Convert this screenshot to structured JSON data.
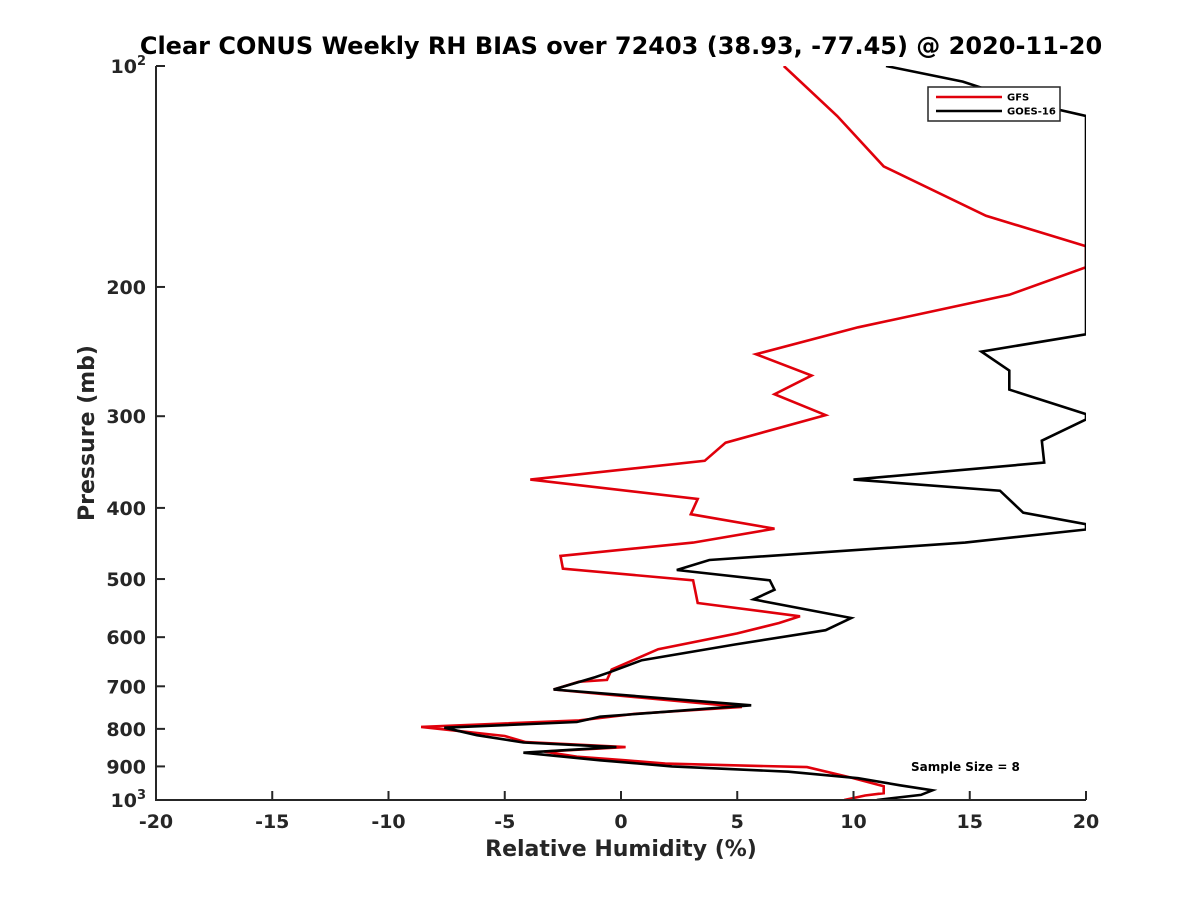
{
  "chart_data": {
    "type": "line",
    "title": "Clear CONUS Weekly RH BIAS over 72403 (38.93, -77.45) @ 2020-11-20",
    "xlabel": "Relative Humidity (%)",
    "ylabel": "Pressure (mb)",
    "xlim": [
      -20,
      20
    ],
    "ylim": [
      100,
      1000
    ],
    "y_scale": "log",
    "y_reversed": true,
    "x_ticks": [
      "-20",
      "-15",
      "-10",
      "-5",
      "0",
      "5",
      "10",
      "15",
      "20"
    ],
    "y_ticks": [
      {
        "value": 100,
        "base": "10",
        "sup": "2"
      },
      {
        "value": 200,
        "base": "200",
        "sup": ""
      },
      {
        "value": 300,
        "base": "300",
        "sup": ""
      },
      {
        "value": 400,
        "base": "400",
        "sup": ""
      },
      {
        "value": 500,
        "base": "500",
        "sup": ""
      },
      {
        "value": 600,
        "base": "600",
        "sup": ""
      },
      {
        "value": 700,
        "base": "700",
        "sup": ""
      },
      {
        "value": 800,
        "base": "800",
        "sup": ""
      },
      {
        "value": 900,
        "base": "900",
        "sup": ""
      },
      {
        "value": 1000,
        "base": "10",
        "sup": "3"
      }
    ],
    "grid": false,
    "legend_position": "top-right",
    "annotation": "Sample Size = 8",
    "series": [
      {
        "name": "GFS",
        "color": "#e0000b",
        "points": [
          [
            7.0,
            100
          ],
          [
            9.3,
            117
          ],
          [
            11.3,
            137
          ],
          [
            15.7,
            160
          ],
          [
            20.0,
            176
          ],
          [
            20.0,
            181
          ],
          [
            20.0,
            188
          ],
          [
            16.7,
            205
          ],
          [
            10.2,
            227
          ],
          [
            5.8,
            247
          ],
          [
            8.2,
            264
          ],
          [
            6.6,
            280
          ],
          [
            8.8,
            299
          ],
          [
            4.5,
            326
          ],
          [
            3.6,
            345
          ],
          [
            -3.9,
            366
          ],
          [
            3.3,
            389
          ],
          [
            3.0,
            408
          ],
          [
            6.6,
            427
          ],
          [
            3.1,
            446
          ],
          [
            -2.6,
            465
          ],
          [
            -2.5,
            484
          ],
          [
            3.1,
            502
          ],
          [
            3.2,
            520
          ],
          [
            3.3,
            539
          ],
          [
            7.7,
            562
          ],
          [
            6.8,
            574
          ],
          [
            5.0,
            593
          ],
          [
            1.6,
            623
          ],
          [
            -0.4,
            664
          ],
          [
            -0.6,
            686
          ],
          [
            -1.8,
            690
          ],
          [
            -2.9,
            707
          ],
          [
            5.2,
            747
          ],
          [
            0.6,
            763
          ],
          [
            -1.8,
            779
          ],
          [
            -8.6,
            795
          ],
          [
            -5.0,
            818
          ],
          [
            -4.1,
            834
          ],
          [
            0.2,
            847
          ],
          [
            -3.3,
            859
          ],
          [
            -1.9,
            873
          ],
          [
            0.2,
            883
          ],
          [
            1.9,
            892
          ],
          [
            8.0,
            902
          ],
          [
            9.9,
            932
          ],
          [
            11.3,
            958
          ],
          [
            11.3,
            979
          ],
          [
            10.5,
            986
          ],
          [
            9.6,
            1000
          ]
        ]
      },
      {
        "name": "GOES-16",
        "color": "#000000",
        "points": [
          [
            11.4,
            100
          ],
          [
            14.7,
            105
          ],
          [
            17.4,
            112
          ],
          [
            20.0,
            117
          ],
          [
            20.0,
            122
          ],
          [
            20.0,
            232
          ],
          [
            15.5,
            245
          ],
          [
            16.7,
            260
          ],
          [
            16.7,
            276
          ],
          [
            20.0,
            298
          ],
          [
            20.0,
            303
          ],
          [
            18.1,
            324
          ],
          [
            18.2,
            347
          ],
          [
            10.0,
            366
          ],
          [
            16.3,
            379
          ],
          [
            17.3,
            406
          ],
          [
            20.0,
            421
          ],
          [
            20.0,
            428
          ],
          [
            14.8,
            446
          ],
          [
            3.8,
            471
          ],
          [
            2.4,
            486
          ],
          [
            6.4,
            502
          ],
          [
            6.6,
            517
          ],
          [
            5.7,
            533
          ],
          [
            9.9,
            565
          ],
          [
            8.8,
            587
          ],
          [
            4.9,
            614
          ],
          [
            0.9,
            645
          ],
          [
            -0.5,
            670
          ],
          [
            -1.1,
            680
          ],
          [
            -2.9,
            707
          ],
          [
            5.6,
            743
          ],
          [
            -0.9,
            770
          ],
          [
            -1.9,
            783
          ],
          [
            -7.6,
            797
          ],
          [
            -6.2,
            816
          ],
          [
            -4.2,
            835
          ],
          [
            -0.2,
            847
          ],
          [
            -4.2,
            862
          ],
          [
            -0.9,
            883
          ],
          [
            2.2,
            900
          ],
          [
            7.2,
            915
          ],
          [
            10.2,
            934
          ],
          [
            12.0,
            955
          ],
          [
            13.4,
            970
          ],
          [
            12.9,
            984
          ],
          [
            11.0,
            1000
          ]
        ]
      }
    ]
  }
}
